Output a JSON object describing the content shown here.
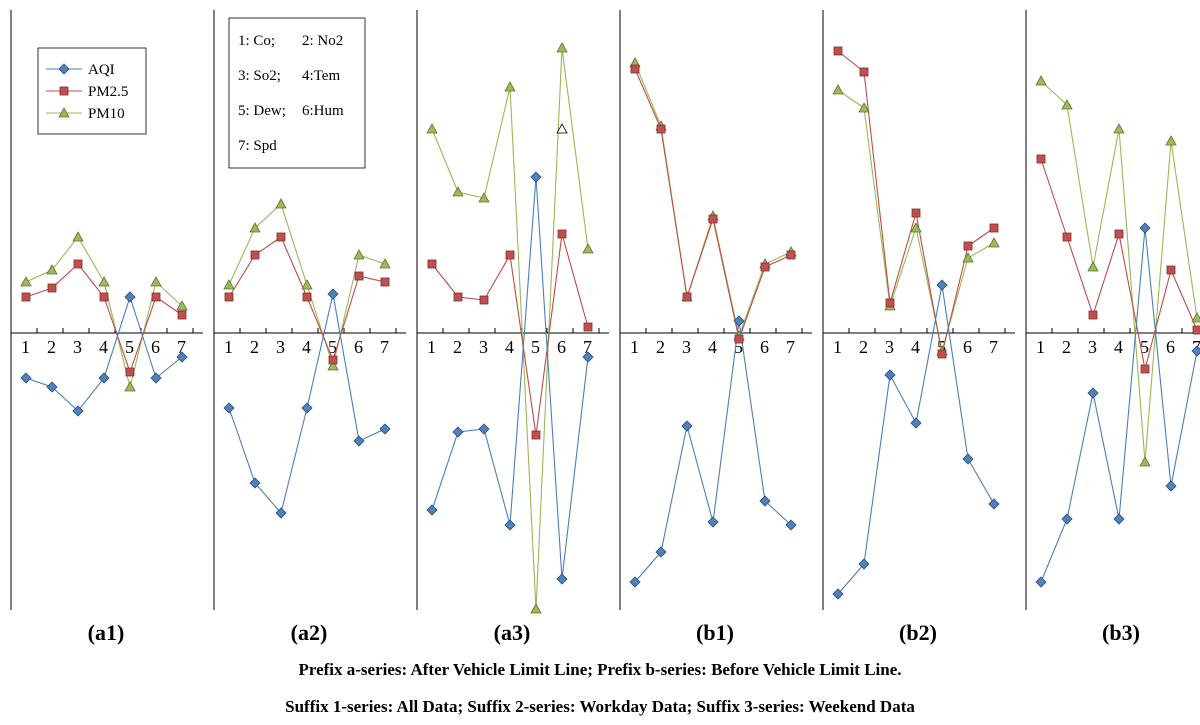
{
  "chart_data": {
    "type": "line",
    "x_ticks": [
      1,
      2,
      3,
      4,
      5,
      6,
      7
    ],
    "series_colors": {
      "AQI": "#4a7ebb",
      "PM2.5": "#be4b48",
      "PM10": "#98b954"
    },
    "legend": [
      "AQI",
      "PM2.5",
      "PM10"
    ],
    "variable_key": [
      "1: Co;",
      "2: No2",
      "3: So2;",
      "4:Tem",
      "5: Dew;",
      "6:Hum",
      "7: Spd"
    ],
    "panels": [
      {
        "label": "(a1)",
        "ylim": [
          -1,
          1
        ],
        "series": [
          {
            "name": "AQI",
            "values": [
              -0.15,
              -0.18,
              -0.26,
              -0.15,
              0.12,
              -0.15,
              -0.08
            ]
          },
          {
            "name": "PM2.5",
            "values": [
              0.12,
              0.15,
              0.23,
              0.12,
              -0.13,
              0.12,
              0.06
            ]
          },
          {
            "name": "PM10",
            "values": [
              0.17,
              0.21,
              0.32,
              0.17,
              -0.18,
              0.17,
              0.09
            ]
          }
        ]
      },
      {
        "label": "(a2)",
        "ylim": [
          -1,
          1
        ],
        "series": [
          {
            "name": "AQI",
            "values": [
              -0.25,
              -0.5,
              -0.6,
              -0.25,
              0.13,
              -0.36,
              -0.32
            ]
          },
          {
            "name": "PM2.5",
            "values": [
              0.12,
              0.26,
              0.32,
              0.12,
              -0.09,
              0.19,
              0.17
            ]
          },
          {
            "name": "PM10",
            "values": [
              0.16,
              0.35,
              0.43,
              0.16,
              -0.11,
              0.26,
              0.23
            ]
          }
        ]
      },
      {
        "label": "(a3)",
        "ylim": [
          -1,
          1
        ],
        "series": [
          {
            "name": "AQI",
            "values": [
              -0.59,
              -0.33,
              -0.32,
              -0.64,
              0.52,
              -0.82,
              -0.08
            ]
          },
          {
            "name": "PM2.5",
            "values": [
              0.23,
              0.12,
              0.11,
              0.26,
              -0.34,
              0.33,
              0.02
            ]
          },
          {
            "name": "PM10",
            "values": [
              0.68,
              0.47,
              0.45,
              0.82,
              -0.92,
              0.95,
              0.28
            ]
          }
        ],
        "annotations": [
          {
            "x": 6,
            "y": 0.68,
            "marker": "open-triangle"
          }
        ]
      },
      {
        "label": "(b1)",
        "ylim": [
          -1,
          1
        ],
        "series": [
          {
            "name": "AQI",
            "values": [
              -0.83,
              -0.73,
              -0.31,
              -0.63,
              0.04,
              -0.56,
              -0.64
            ]
          },
          {
            "name": "PM2.5",
            "values": [
              0.88,
              0.68,
              0.12,
              0.38,
              -0.02,
              0.22,
              0.26
            ]
          },
          {
            "name": "PM10",
            "values": [
              0.9,
              0.69,
              0.12,
              0.39,
              -0.01,
              0.23,
              0.27
            ]
          }
        ]
      },
      {
        "label": "(b2)",
        "ylim": [
          -1,
          1
        ],
        "series": [
          {
            "name": "AQI",
            "values": [
              -0.87,
              -0.77,
              -0.14,
              -0.3,
              0.16,
              -0.42,
              -0.57
            ]
          },
          {
            "name": "PM2.5",
            "values": [
              0.94,
              0.87,
              0.1,
              0.4,
              -0.07,
              0.29,
              0.35
            ]
          },
          {
            "name": "PM10",
            "values": [
              0.81,
              0.75,
              0.09,
              0.35,
              -0.06,
              0.25,
              0.3
            ]
          }
        ]
      },
      {
        "label": "(b3)",
        "ylim": [
          -1,
          1
        ],
        "series": [
          {
            "name": "AQI",
            "values": [
              -0.83,
              -0.62,
              -0.2,
              -0.62,
              0.35,
              -0.51,
              -0.06
            ]
          },
          {
            "name": "PM2.5",
            "values": [
              0.58,
              0.32,
              0.06,
              0.33,
              -0.12,
              0.21,
              0.01
            ]
          },
          {
            "name": "PM10",
            "values": [
              0.84,
              0.76,
              0.22,
              0.68,
              -0.43,
              0.64,
              0.05
            ]
          }
        ]
      }
    ]
  },
  "captions": {
    "line1": "Prefix a-series: After Vehicle Limit Line; Prefix b-series: Before Vehicle Limit Line.",
    "line2": "Suffix 1-series: All Data; Suffix 2-series: Workday Data; Suffix 3-series: Weekend Data"
  }
}
